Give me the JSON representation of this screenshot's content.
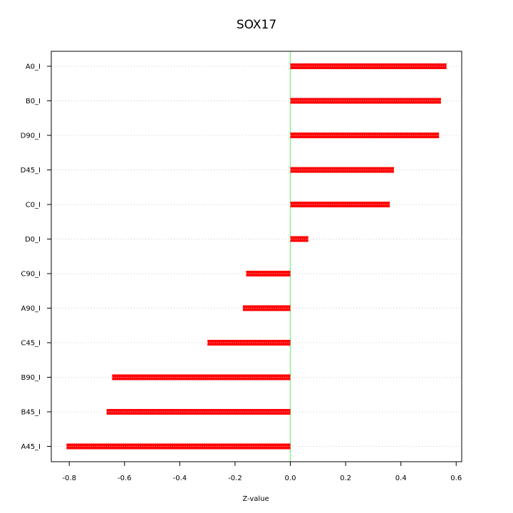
{
  "chart_data": {
    "type": "bar",
    "orientation": "horizontal",
    "title": "SOX17",
    "xlabel": "Z-value",
    "ylabel": "",
    "categories": [
      "A0_I",
      "B0_I",
      "D90_I",
      "D45_I",
      "C0_I",
      "D0_I",
      "C90_I",
      "A90_I",
      "C45_I",
      "B90_I",
      "B45_I",
      "A45_I"
    ],
    "values": [
      0.565,
      0.545,
      0.538,
      0.375,
      0.36,
      0.065,
      -0.16,
      -0.172,
      -0.3,
      -0.645,
      -0.665,
      -0.81
    ],
    "xlim": [
      -0.865,
      0.62
    ],
    "xticks": [
      -0.8,
      -0.6,
      -0.4,
      -0.2,
      0.0,
      0.2,
      0.4,
      0.6
    ],
    "xtick_labels": [
      "-0.8",
      "-0.6",
      "-0.4",
      "-0.2",
      "0.0",
      "0.2",
      "0.4",
      "0.6"
    ],
    "grid": "horizontal dotted lines at each category",
    "reference_line": {
      "x": 0,
      "color": "#90ee90"
    },
    "bar_color": "#ff0000",
    "bar_dot_color": "#ffd0d0"
  }
}
